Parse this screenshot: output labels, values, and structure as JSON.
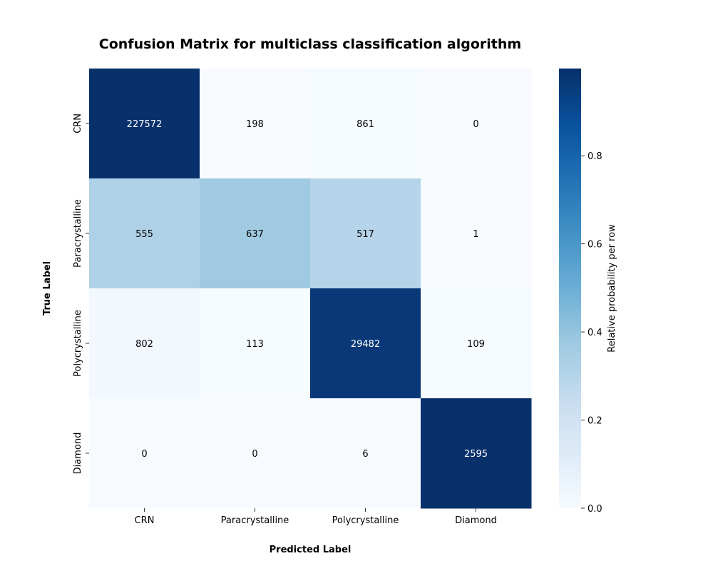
{
  "chart_data": {
    "type": "heatmap",
    "title": "Confusion Matrix for multiclass classification algorithm",
    "xlabel": "Predicted Label",
    "ylabel": "True Label",
    "x_categories": [
      "CRN",
      "Paracrystalline",
      "Polycrystalline",
      "Diamond"
    ],
    "y_categories": [
      "CRN",
      "Paracrystalline",
      "Polycrystalline",
      "Diamond"
    ],
    "matrix": [
      [
        227572,
        198,
        861,
        0
      ],
      [
        555,
        637,
        517,
        1
      ],
      [
        802,
        113,
        29482,
        109
      ],
      [
        0,
        0,
        6,
        2595
      ]
    ],
    "color_basis": "row-normalized",
    "colormap": "Blues",
    "colorbar": {
      "label": "Relative probability per row",
      "ticks": [
        "0.0",
        "0.2",
        "0.4",
        "0.6",
        "0.8"
      ],
      "tick_values": [
        0.0,
        0.2,
        0.4,
        0.6,
        0.8
      ],
      "range": [
        0.0,
        0.998
      ]
    },
    "grid": false,
    "colors": {
      "low": "#f7fbff",
      "high": "#08306b",
      "text_dark": "#000000",
      "text_light": "#ffffff"
    }
  }
}
